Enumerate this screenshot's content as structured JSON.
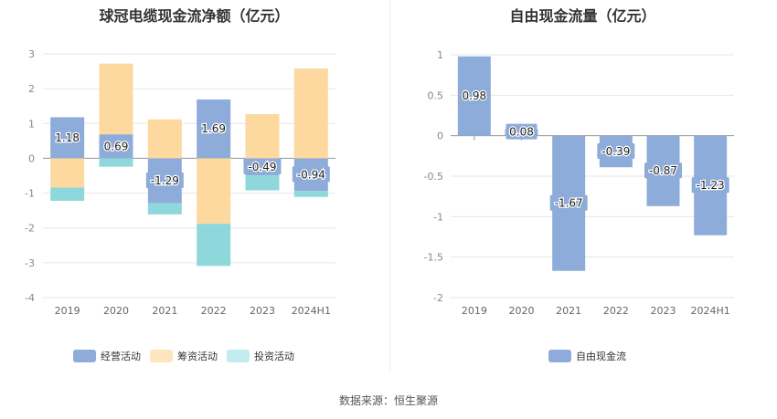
{
  "source": "数据来源：恒生聚源",
  "chart_data": [
    {
      "type": "bar",
      "stacked": true,
      "title": "球冠电缆现金流净额（亿元）",
      "categories": [
        "2019",
        "2020",
        "2021",
        "2022",
        "2023",
        "2024H1"
      ],
      "ylim": [
        -4,
        3
      ],
      "yticks": [
        3,
        2,
        1,
        0,
        -1,
        -2,
        -3,
        -4
      ],
      "grid": true,
      "legend_position": "bottom",
      "series": [
        {
          "name": "经营活动",
          "color": "#8eacd9",
          "values": [
            1.18,
            0.69,
            -1.29,
            1.69,
            -0.49,
            -0.94
          ],
          "labeled": true
        },
        {
          "name": "筹资活动",
          "color": "#fdd9a0",
          "values": [
            -0.84,
            2.03,
            1.12,
            -1.88,
            1.27,
            2.58
          ],
          "labeled": false
        },
        {
          "name": "投资活动",
          "color": "#8ed8dc",
          "values": [
            -0.38,
            -0.24,
            -0.32,
            -1.21,
            -0.43,
            -0.17
          ],
          "labeled": false
        }
      ],
      "data_labels": [
        "1.18",
        "0.69",
        "-1.29",
        "1.69",
        "-0.49",
        "-0.94"
      ]
    },
    {
      "type": "bar",
      "title": "自由现金流量（亿元）",
      "categories": [
        "2019",
        "2020",
        "2021",
        "2022",
        "2023",
        "2024H1"
      ],
      "ylim": [
        -2,
        1
      ],
      "yticks": [
        "1",
        "0.5",
        "0",
        "-0.5",
        "-1",
        "-1.5",
        "-2"
      ],
      "grid": true,
      "legend_position": "bottom",
      "series": [
        {
          "name": "自由现金流",
          "color": "#8eacd9",
          "values": [
            0.98,
            0.08,
            -1.67,
            -0.39,
            -0.87,
            -1.23
          ]
        }
      ],
      "data_labels": [
        "0.98",
        "0.08",
        "-1.67",
        "-0.39",
        "-0.87",
        "-1.23"
      ]
    }
  ]
}
